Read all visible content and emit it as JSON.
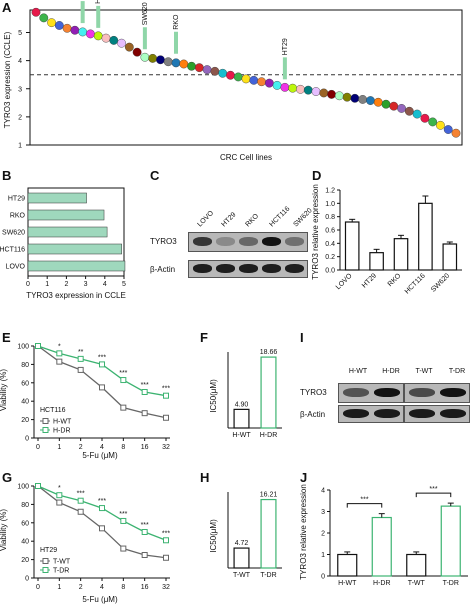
{
  "panels": {
    "A": {
      "label": "A",
      "ylabel": "TYRO3 expression (CCLE)",
      "xlabel": "CRC Cell lines",
      "yticks": [
        "1",
        "2",
        "3",
        "4",
        "5"
      ],
      "cutoff": 3.5,
      "highlights": [
        {
          "name": "LOVO",
          "x": 6,
          "y": 5.05
        },
        {
          "name": "HCT116",
          "x": 8,
          "y": 4.88
        },
        {
          "name": "SW620",
          "x": 14,
          "y": 4.12
        },
        {
          "name": "RKO",
          "x": 18,
          "y": 3.96
        },
        {
          "name": "HT29",
          "x": 32,
          "y": 3.05
        }
      ],
      "chart_data": {
        "type": "scatter",
        "ylim": [
          1,
          5.8
        ],
        "y": [
          5.72,
          5.52,
          5.35,
          5.25,
          5.15,
          5.08,
          5.02,
          4.95,
          4.88,
          4.8,
          4.72,
          4.62,
          4.48,
          4.3,
          4.12,
          4.08,
          4.03,
          3.96,
          3.92,
          3.88,
          3.8,
          3.75,
          3.68,
          3.62,
          3.55,
          3.48,
          3.42,
          3.35,
          3.3,
          3.25,
          3.2,
          3.12,
          3.05,
          3.02,
          2.98,
          2.95,
          2.9,
          2.85,
          2.8,
          2.75,
          2.7,
          2.66,
          2.62,
          2.58,
          2.52,
          2.45,
          2.38,
          2.3,
          2.2,
          2.1,
          1.95,
          1.82,
          1.7,
          1.55,
          1.42
        ]
      }
    },
    "B": {
      "label": "B",
      "xlabel": "TYRO3 expression in CCLE",
      "xticks": [
        "0",
        "1",
        "2",
        "3",
        "4",
        "5"
      ],
      "chart_data": {
        "type": "bar",
        "categories": [
          "HT29",
          "RKO",
          "SW620",
          "HCT116",
          "LOVO"
        ],
        "values": [
          3.05,
          3.96,
          4.12,
          4.88,
          5.05
        ],
        "xlim": [
          0,
          5
        ]
      }
    },
    "C": {
      "label": "C",
      "lanes": [
        "LOVO",
        "HT29",
        "RKO",
        "HCT116",
        "SW620"
      ],
      "rows": [
        "TYRO3",
        "β-Actin"
      ],
      "tyro3_intensity": [
        0.75,
        0.25,
        0.45,
        0.95,
        0.4
      ]
    },
    "D": {
      "label": "D",
      "ylabel": "TYRO3 relative expression",
      "yticks": [
        "0.0",
        "0.2",
        "0.4",
        "0.6",
        "0.8",
        "1.0",
        "1.2"
      ],
      "chart_data": {
        "type": "bar",
        "categories": [
          "LOVO",
          "HT29",
          "RKO",
          "HCT116",
          "SW620"
        ],
        "values": [
          0.72,
          0.26,
          0.47,
          1.0,
          0.39
        ],
        "errors": [
          0.04,
          0.05,
          0.05,
          0.11,
          0.03
        ],
        "ylim": [
          0,
          1.2
        ]
      }
    },
    "E": {
      "label": "E",
      "ylabel": "Viability (%)",
      "xlabel": "5-Fu (μM)",
      "cell": "HCT116",
      "legend": [
        "H-WT",
        "H-DR"
      ],
      "yticks": [
        "0",
        "20",
        "40",
        "60",
        "80",
        "100"
      ],
      "xticks": [
        "0",
        "1",
        "2",
        "4",
        "8",
        "16",
        "32"
      ],
      "stars": [
        "*",
        "**",
        "***",
        "***",
        "***",
        "***"
      ],
      "chart_data": {
        "type": "line",
        "x": [
          "0",
          "1",
          "2",
          "4",
          "8",
          "16",
          "32"
        ],
        "series": [
          {
            "name": "H-WT",
            "values": [
              100,
              83,
              74,
              55,
              33,
              27,
              22
            ]
          },
          {
            "name": "H-DR",
            "values": [
              100,
              92,
              86,
              80,
              63,
              50,
              46
            ]
          }
        ],
        "ylim": [
          0,
          100
        ]
      }
    },
    "F": {
      "label": "F",
      "ylabel": "IC50(μM)",
      "chart_data": {
        "type": "bar",
        "categories": [
          "H-WT",
          "H-DR"
        ],
        "values": [
          4.9,
          18.66
        ],
        "value_labels": [
          "4.90",
          "18.66"
        ],
        "ylim": [
          0,
          20
        ]
      }
    },
    "G": {
      "label": "G",
      "ylabel": "Viability (%)",
      "xlabel": "5-Fu (μM)",
      "cell": "HT29",
      "legend": [
        "T-WT",
        "T-DR"
      ],
      "yticks": [
        "0",
        "20",
        "40",
        "60",
        "80",
        "100"
      ],
      "xticks": [
        "0",
        "1",
        "2",
        "4",
        "8",
        "16",
        "32"
      ],
      "stars": [
        "*",
        "***",
        "***",
        "***",
        "***",
        "***"
      ],
      "chart_data": {
        "type": "line",
        "x": [
          "0",
          "1",
          "2",
          "4",
          "8",
          "16",
          "32"
        ],
        "series": [
          {
            "name": "T-WT",
            "values": [
              100,
              82,
              72,
              54,
              32,
              25,
              22
            ]
          },
          {
            "name": "T-DR",
            "values": [
              100,
              90,
              84,
              76,
              62,
              50,
              41
            ]
          }
        ],
        "ylim": [
          0,
          100
        ]
      }
    },
    "H": {
      "label": "H",
      "ylabel": "IC50(μM)",
      "chart_data": {
        "type": "bar",
        "categories": [
          "T-WT",
          "T-DR"
        ],
        "values": [
          4.72,
          16.21
        ],
        "value_labels": [
          "4.72",
          "16.21"
        ],
        "ylim": [
          0,
          18
        ]
      }
    },
    "I": {
      "label": "I",
      "lanes": [
        "H-WT",
        "H-DR",
        "T-WT",
        "T-DR"
      ],
      "rows": [
        "TYRO3",
        "β-Actin"
      ]
    },
    "J": {
      "label": "J",
      "ylabel": "TYRO3 relative expression",
      "yticks": [
        "0",
        "1",
        "2",
        "3",
        "4"
      ],
      "stars": [
        "***",
        "***"
      ],
      "chart_data": {
        "type": "bar",
        "categories": [
          "H-WT",
          "H-DR",
          "T-WT",
          "T-DR"
        ],
        "values": [
          1.0,
          2.72,
          1.0,
          3.25
        ],
        "errors": [
          0.12,
          0.18,
          0.12,
          0.14
        ],
        "ylim": [
          0,
          4
        ]
      }
    }
  },
  "colors": {
    "green": "#3cb371",
    "gray": "#666666",
    "highlight_arrow": "#8fd6a8"
  }
}
